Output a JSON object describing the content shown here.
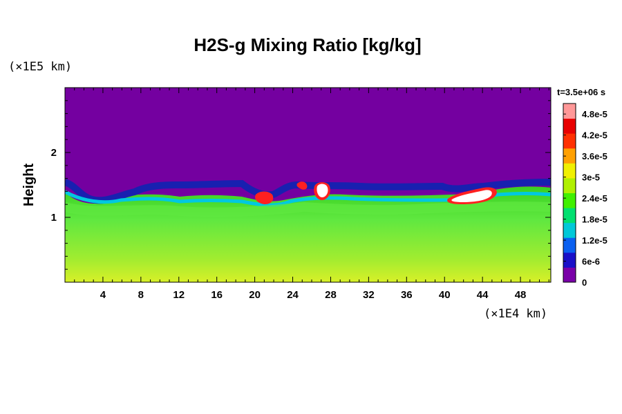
{
  "chart_data": {
    "type": "heatmap",
    "title": "H2S-g Mixing Ratio [kg/kg]",
    "ylabel": "Height",
    "y_unit": "(×1E5 km)",
    "x_unit": "(×1E4 km)",
    "time_label": "t=3.5e+06 s",
    "x_ticks": [
      "4",
      "8",
      "12",
      "16",
      "20",
      "24",
      "28",
      "32",
      "36",
      "40",
      "44",
      "48"
    ],
    "x_tick_values": [
      4,
      8,
      12,
      16,
      20,
      24,
      28,
      32,
      36,
      40,
      44,
      48
    ],
    "y_ticks": [
      "1",
      "2"
    ],
    "y_tick_values": [
      1,
      2
    ],
    "xlim": [
      0,
      51.2
    ],
    "ylim": [
      0,
      3.0
    ],
    "colorbar": {
      "labels": [
        "0",
        "6e-6",
        "1.2e-5",
        "1.8e-5",
        "2.4e-5",
        "3e-5",
        "3.6e-5",
        "4.2e-5",
        "4.8e-5"
      ],
      "values": [
        0,
        6e-06,
        1.2e-05,
        1.8e-05,
        2.4e-05,
        3e-05,
        3.6e-05,
        4.2e-05,
        4.8e-05
      ],
      "range": [
        0,
        5.1e-05
      ],
      "colors": [
        "#7a00a8",
        "#1a10c8",
        "#0a60f0",
        "#00c8d8",
        "#00e070",
        "#40f000",
        "#b0f000",
        "#f0f000",
        "#ffa000",
        "#ff3000",
        "#e80000",
        "#ff9898"
      ]
    },
    "colors": {
      "background_layer": "#7400a0",
      "upper_layer": "#38d020",
      "mid_layer": "#60e840",
      "lower_layer": "#a0ec30",
      "bottom_layer": "#d8f028",
      "front_dark": "#1820b0",
      "front_light": "#00c8e0",
      "hotspot": "#ff2020",
      "peak": "#ffffff"
    }
  }
}
